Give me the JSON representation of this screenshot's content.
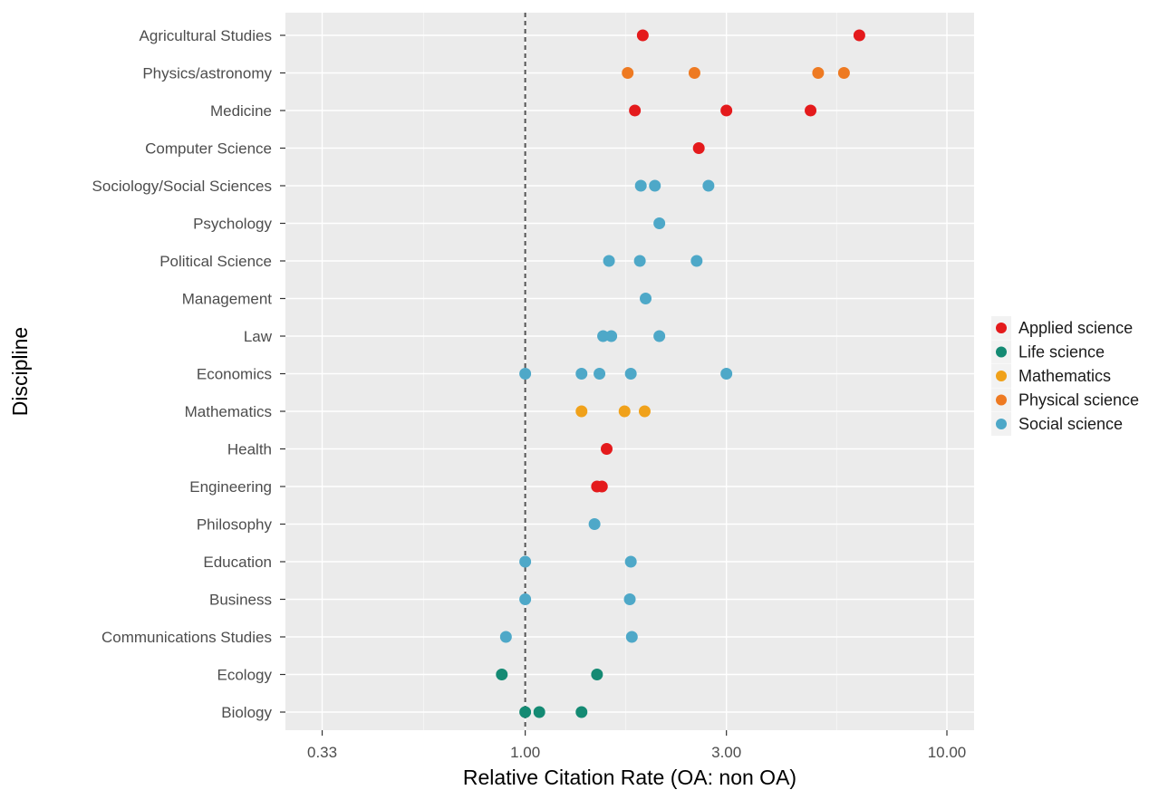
{
  "chart_data": {
    "type": "scatter",
    "title": "",
    "xlabel": "Relative Citation Rate (OA: non OA)",
    "ylabel": "Discipline",
    "x_scale": "log",
    "xlim": [
      0.27,
      11.6
    ],
    "x_ticks": [
      0.33,
      1.0,
      3.0,
      10.0
    ],
    "x_tick_labels": [
      "0.33",
      "1.00",
      "3.00",
      "10.00"
    ],
    "grid": true,
    "legend_position": "right",
    "categories": [
      "Agricultural Studies",
      "Physics/astronomy",
      "Medicine",
      "Computer Science",
      "Sociology/Social Sciences",
      "Psychology",
      "Political Science",
      "Management",
      "Law",
      "Economics",
      "Mathematics",
      "Health",
      "Engineering",
      "Philosophy",
      "Education",
      "Business",
      "Communications Studies",
      "Ecology",
      "Biology"
    ],
    "series": [
      {
        "name": "Applied science",
        "color": "#e41a1c",
        "points": [
          {
            "category": "Agricultural Studies",
            "x": 1.9
          },
          {
            "category": "Agricultural Studies",
            "x": 6.2
          },
          {
            "category": "Medicine",
            "x": 1.82
          },
          {
            "category": "Medicine",
            "x": 3.0
          },
          {
            "category": "Medicine",
            "x": 4.75
          },
          {
            "category": "Computer Science",
            "x": 2.58
          },
          {
            "category": "Health",
            "x": 1.56
          },
          {
            "category": "Engineering",
            "x": 1.48
          },
          {
            "category": "Engineering",
            "x": 1.52
          }
        ]
      },
      {
        "name": "Life science",
        "color": "#148a73",
        "points": [
          {
            "category": "Ecology",
            "x": 0.88
          },
          {
            "category": "Ecology",
            "x": 1.48
          },
          {
            "category": "Biology",
            "x": 1.0
          },
          {
            "category": "Biology",
            "x": 1.08
          },
          {
            "category": "Biology",
            "x": 1.36
          }
        ]
      },
      {
        "name": "Mathematics",
        "color": "#f0a11a",
        "points": [
          {
            "category": "Mathematics",
            "x": 1.36
          },
          {
            "category": "Mathematics",
            "x": 1.72
          },
          {
            "category": "Mathematics",
            "x": 1.92
          }
        ]
      },
      {
        "name": "Physical science",
        "color": "#ee7a22",
        "points": [
          {
            "category": "Physics/astronomy",
            "x": 1.75
          },
          {
            "category": "Physics/astronomy",
            "x": 2.52
          },
          {
            "category": "Physics/astronomy",
            "x": 4.95
          },
          {
            "category": "Physics/astronomy",
            "x": 5.7
          }
        ]
      },
      {
        "name": "Social science",
        "color": "#4ea8c8",
        "points": [
          {
            "category": "Sociology/Social Sciences",
            "x": 1.88
          },
          {
            "category": "Sociology/Social Sciences",
            "x": 2.03
          },
          {
            "category": "Sociology/Social Sciences",
            "x": 2.72
          },
          {
            "category": "Psychology",
            "x": 2.08
          },
          {
            "category": "Political Science",
            "x": 1.58
          },
          {
            "category": "Political Science",
            "x": 1.87
          },
          {
            "category": "Political Science",
            "x": 2.55
          },
          {
            "category": "Management",
            "x": 1.93
          },
          {
            "category": "Law",
            "x": 1.53
          },
          {
            "category": "Law",
            "x": 1.6
          },
          {
            "category": "Law",
            "x": 2.08
          },
          {
            "category": "Economics",
            "x": 1.0
          },
          {
            "category": "Economics",
            "x": 1.36
          },
          {
            "category": "Economics",
            "x": 1.5
          },
          {
            "category": "Economics",
            "x": 1.78
          },
          {
            "category": "Economics",
            "x": 3.0
          },
          {
            "category": "Philosophy",
            "x": 1.46
          },
          {
            "category": "Education",
            "x": 1.0
          },
          {
            "category": "Education",
            "x": 1.78
          },
          {
            "category": "Business",
            "x": 1.0
          },
          {
            "category": "Business",
            "x": 1.77
          },
          {
            "category": "Communications Studies",
            "x": 0.9
          },
          {
            "category": "Communications Studies",
            "x": 1.79
          }
        ]
      }
    ],
    "reference_line": {
      "x": 1.0,
      "style": "dashed"
    }
  }
}
